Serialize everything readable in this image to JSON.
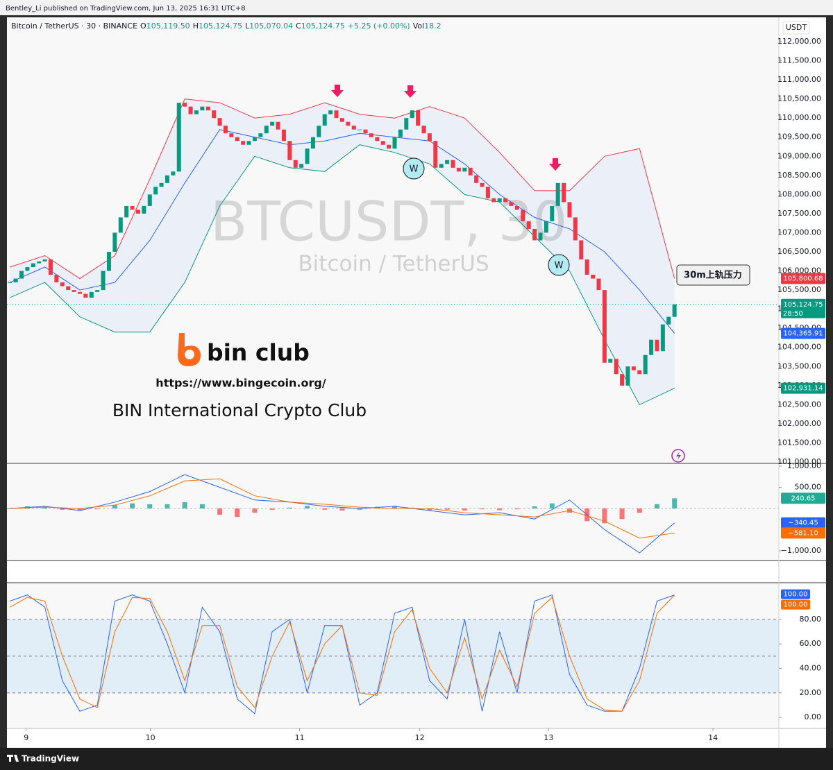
{
  "header": {
    "publisher": "Bentley_Li published on TradingView.com, Jun 13, 2025 16:31 UTC+8",
    "symbol": "Bitcoin / TetherUS · 30 · BINANCE",
    "ohlc": [
      {
        "label": "O",
        "value": "105,119.50"
      },
      {
        "label": "H",
        "value": "105,124.75"
      },
      {
        "label": "L",
        "value": "105,070.04"
      },
      {
        "label": "C",
        "value": "105,124.75"
      }
    ],
    "change": "+5.25 (+0.00%)",
    "volume_label": "Vol",
    "volume": "18.2",
    "currency": "USDT"
  },
  "watermark": {
    "ticker": "BTCUSDT, 30",
    "name": "Bitcoin / TetherUS"
  },
  "branding": {
    "logo": "bin club",
    "url": "https://www.bingecoin.org/",
    "club": "BIN International Crypto Club"
  },
  "annotations": {
    "w1": "W",
    "w2": "W",
    "callout": "30m上轨压力"
  },
  "footer": {
    "brand": "TradingView"
  },
  "chart_data": [
    {
      "type": "candlestick",
      "up_color": "#089981",
      "down_color": "#f23645",
      "values": [
        105700,
        105800,
        106000,
        106100,
        106200,
        106250,
        106300,
        105900,
        105700,
        105600,
        105500,
        105450,
        105400,
        105300,
        105450,
        105500,
        106000,
        106500,
        107000,
        107400,
        107700,
        107600,
        107500,
        107700,
        108000,
        108200,
        108300,
        108500,
        108600,
        110400,
        110300,
        110100,
        110200,
        110300,
        110200,
        110000,
        109800,
        109600,
        109500,
        109400,
        109300,
        109400,
        109500,
        109600,
        109800,
        109900,
        109700,
        109400,
        108900,
        108700,
        108800,
        109200,
        109500,
        109800,
        110100,
        110200,
        110000,
        109900,
        109800,
        109700,
        109700,
        109600,
        109500,
        109400,
        109300,
        109200,
        109500,
        109700,
        110000,
        110200,
        109800,
        109600,
        109400,
        108700,
        108800,
        108900,
        108700,
        108600,
        108700,
        108500,
        108300,
        108200,
        107900,
        107800,
        107900,
        107800,
        107700,
        107600,
        107300,
        107100,
        106800,
        107000,
        107300,
        107700,
        108300,
        107800,
        107400,
        106800,
        106300,
        105900,
        105800,
        105500,
        103600,
        103700,
        103300,
        103000,
        103500,
        103400,
        103300,
        103800,
        104200,
        103900,
        104600,
        104800,
        105124.75
      ],
      "countdown": "28:50",
      "xlim": [
        0,
        132.4
      ],
      "xticks": [
        {
          "value": 3.3,
          "label": "9"
        },
        {
          "value": 24.6,
          "label": "10"
        },
        {
          "value": 50.2,
          "label": "11"
        },
        {
          "value": 70.8,
          "label": "12"
        },
        {
          "value": 92.9,
          "label": "13"
        },
        {
          "value": 121.1,
          "label": "14"
        }
      ],
      "ylim": [
        100964,
        112635
      ],
      "yticks": [
        {
          "value": 101000,
          "label": "101,000.00"
        },
        {
          "value": 101500,
          "label": "101,500.00"
        },
        {
          "value": 102000,
          "label": "102,000.00"
        },
        {
          "value": 102500,
          "label": "102,500.00"
        },
        {
          "value": 103000,
          "label": "103,000.00"
        },
        {
          "value": 103500,
          "label": "103,500.00"
        },
        {
          "value": 104000,
          "label": "104,000.00"
        },
        {
          "value": 104500,
          "label": "104,500.00"
        },
        {
          "value": 105000,
          "label": "105,000.00"
        },
        {
          "value": 105500,
          "label": "105,500.00"
        },
        {
          "value": 106000,
          "label": "106,000.00"
        },
        {
          "value": 106500,
          "label": "106,500.00"
        },
        {
          "value": 107000,
          "label": "107,000.00"
        },
        {
          "value": 107500,
          "label": "107,500.00"
        },
        {
          "value": 108000,
          "label": "108,000.00"
        },
        {
          "value": 108500,
          "label": "108,500.00"
        },
        {
          "value": 109000,
          "label": "109,000.00"
        },
        {
          "value": 109500,
          "label": "109,500.00"
        },
        {
          "value": 110000,
          "label": "110,000.00"
        },
        {
          "value": 110500,
          "label": "110,500.00"
        },
        {
          "value": 111000,
          "label": "111,000.00"
        },
        {
          "value": 111500,
          "label": "111,500.00"
        },
        {
          "value": 112000,
          "label": "112,000.00"
        }
      ],
      "grid": false,
      "bands": {
        "x": [
          0,
          6,
          12,
          18,
          24,
          30,
          36,
          42,
          48,
          54,
          60,
          66,
          72,
          78,
          84,
          90,
          96,
          102,
          108,
          114
        ],
        "upper": [
          106100,
          106400,
          105800,
          106400,
          108400,
          110500,
          110400,
          110000,
          110100,
          110400,
          110100,
          110000,
          110300,
          110000,
          109100,
          108100,
          108100,
          109000,
          109200,
          105800.68
        ],
        "middle": [
          105700,
          106100,
          105500,
          105700,
          106800,
          108300,
          109700,
          109500,
          109300,
          109400,
          109600,
          109500,
          109400,
          108800,
          108000,
          107400,
          107100,
          106500,
          105500,
          104365.91
        ],
        "lower": [
          105300,
          105700,
          104800,
          104400,
          104400,
          105700,
          107700,
          109000,
          108700,
          108600,
          109300,
          109100,
          108800,
          108000,
          107800,
          106900,
          106000,
          104200,
          102500,
          102931.14
        ],
        "upper_color": "#f23645",
        "middle_color": "#2962ff",
        "lower_color": "#089981"
      },
      "axis_labels": [
        {
          "value": 105800.68,
          "label": "105,800.68",
          "color": "#f23645"
        },
        {
          "value": 104365.91,
          "label": "104,365.91",
          "color": "#2962ff"
        },
        {
          "value": 102931.14,
          "label": "102,931.14",
          "color": "#089981"
        }
      ],
      "last_label": {
        "value": 105124.75,
        "label": "105,124.75",
        "color": "#089981"
      }
    },
    {
      "type": "macd",
      "x": [
        0,
        6,
        12,
        18,
        24,
        30,
        36,
        42,
        48,
        54,
        60,
        66,
        72,
        78,
        84,
        90,
        96,
        102,
        108,
        114
      ],
      "series": [
        {
          "color": "#2962ff",
          "values": [
            0,
            50,
            -50,
            150,
            400,
            800,
            500,
            200,
            150,
            50,
            0,
            50,
            -50,
            -150,
            -100,
            -250,
            200,
            -500,
            -1050,
            -340.45
          ]
        },
        {
          "color": "#ff6d00",
          "values": [
            0,
            30,
            0,
            80,
            300,
            650,
            700,
            300,
            150,
            100,
            30,
            0,
            0,
            -100,
            -150,
            -200,
            -50,
            -300,
            -700,
            -581.1
          ]
        }
      ],
      "hist_x": [
        0,
        3,
        6,
        9,
        12,
        15,
        18,
        21,
        24,
        27,
        30,
        33,
        36,
        39,
        42,
        45,
        48,
        51,
        54,
        57,
        60,
        63,
        66,
        69,
        72,
        75,
        78,
        81,
        84,
        87,
        90,
        93,
        96,
        99,
        102,
        105,
        108,
        111,
        114
      ],
      "hist": [
        0,
        50,
        30,
        -30,
        -50,
        -20,
        80,
        120,
        100,
        100,
        150,
        100,
        -150,
        -200,
        -100,
        -30,
        20,
        60,
        -30,
        -50,
        -30,
        40,
        60,
        20,
        -40,
        -30,
        -50,
        -20,
        -40,
        -20,
        50,
        120,
        -100,
        -300,
        -350,
        -250,
        -100,
        100,
        240.65
      ],
      "hist_up_color": "#26a69a",
      "hist_down_color": "#ff5252",
      "ylim": [
        -1230,
        1065
      ],
      "yticks": [
        {
          "value": 1000,
          "label": "1,000.00"
        },
        {
          "value": 500,
          "label": "500.00"
        },
        {
          "value": -1000,
          "label": "−1,000.00"
        }
      ],
      "axis_labels": [
        {
          "value": 240.65,
          "label": "240.65",
          "color": "#22ab94"
        },
        {
          "value": -340.45,
          "label": "−340.45",
          "color": "#2962ff"
        },
        {
          "value": -581.1,
          "label": "−581.10",
          "color": "#ff6d00"
        }
      ]
    },
    {
      "type": "stochastic",
      "x": [
        0,
        3,
        6,
        9,
        12,
        15,
        18,
        21,
        24,
        27,
        30,
        33,
        36,
        39,
        42,
        45,
        48,
        51,
        54,
        57,
        60,
        63,
        66,
        69,
        72,
        75,
        78,
        81,
        84,
        87,
        90,
        93,
        96,
        99,
        102,
        105,
        108,
        111,
        114
      ],
      "series": [
        {
          "color": "#2962ff",
          "values": [
            95,
            100,
            90,
            30,
            5,
            10,
            95,
            100,
            95,
            60,
            20,
            90,
            70,
            15,
            3,
            70,
            80,
            20,
            75,
            75,
            10,
            20,
            85,
            90,
            30,
            15,
            80,
            5,
            70,
            20,
            95,
            100,
            35,
            10,
            5,
            5,
            40,
            95,
            100
          ]
        },
        {
          "color": "#ff6d00",
          "values": [
            90,
            98,
            95,
            50,
            15,
            8,
            70,
            98,
            97,
            70,
            30,
            75,
            75,
            25,
            8,
            50,
            78,
            30,
            60,
            75,
            20,
            18,
            70,
            88,
            40,
            20,
            65,
            15,
            55,
            25,
            85,
            98,
            50,
            15,
            6,
            5,
            30,
            85,
            100
          ]
        }
      ],
      "band": [
        20,
        80
      ],
      "levels": [
        20,
        50,
        80
      ],
      "ylim": [
        -9,
        110
      ],
      "yticks": [
        {
          "value": 0,
          "label": "0.00"
        },
        {
          "value": 20,
          "label": "20.00"
        },
        {
          "value": 40,
          "label": "40.00"
        },
        {
          "value": 60,
          "label": "60.00"
        },
        {
          "value": 80,
          "label": "80.00"
        }
      ],
      "axis_labels": [
        {
          "value": 100,
          "label": "100.00",
          "color": "#2962ff"
        },
        {
          "value": 100,
          "label": "100.00",
          "color": "#ff6d00"
        }
      ]
    }
  ]
}
